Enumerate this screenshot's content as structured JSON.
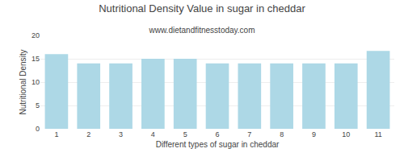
{
  "chart_data": {
    "type": "bar",
    "title": "Nutritional Density Value in sugar in cheddar",
    "subtitle": "www.dietandfitnesstoday.com",
    "xlabel": "Different types of sugar in cheddar",
    "ylabel": "Nutritional Density",
    "categories": [
      1,
      2,
      3,
      4,
      5,
      6,
      7,
      8,
      9,
      10,
      11
    ],
    "values": [
      16.0,
      14.0,
      14.0,
      15.0,
      15.0,
      14.0,
      14.0,
      14.0,
      14.0,
      14.0,
      16.7
    ],
    "color": "#add8e6",
    "ylim": [
      0,
      20
    ],
    "yticks": [
      0,
      5,
      10,
      15,
      20
    ],
    "grid": true
  }
}
